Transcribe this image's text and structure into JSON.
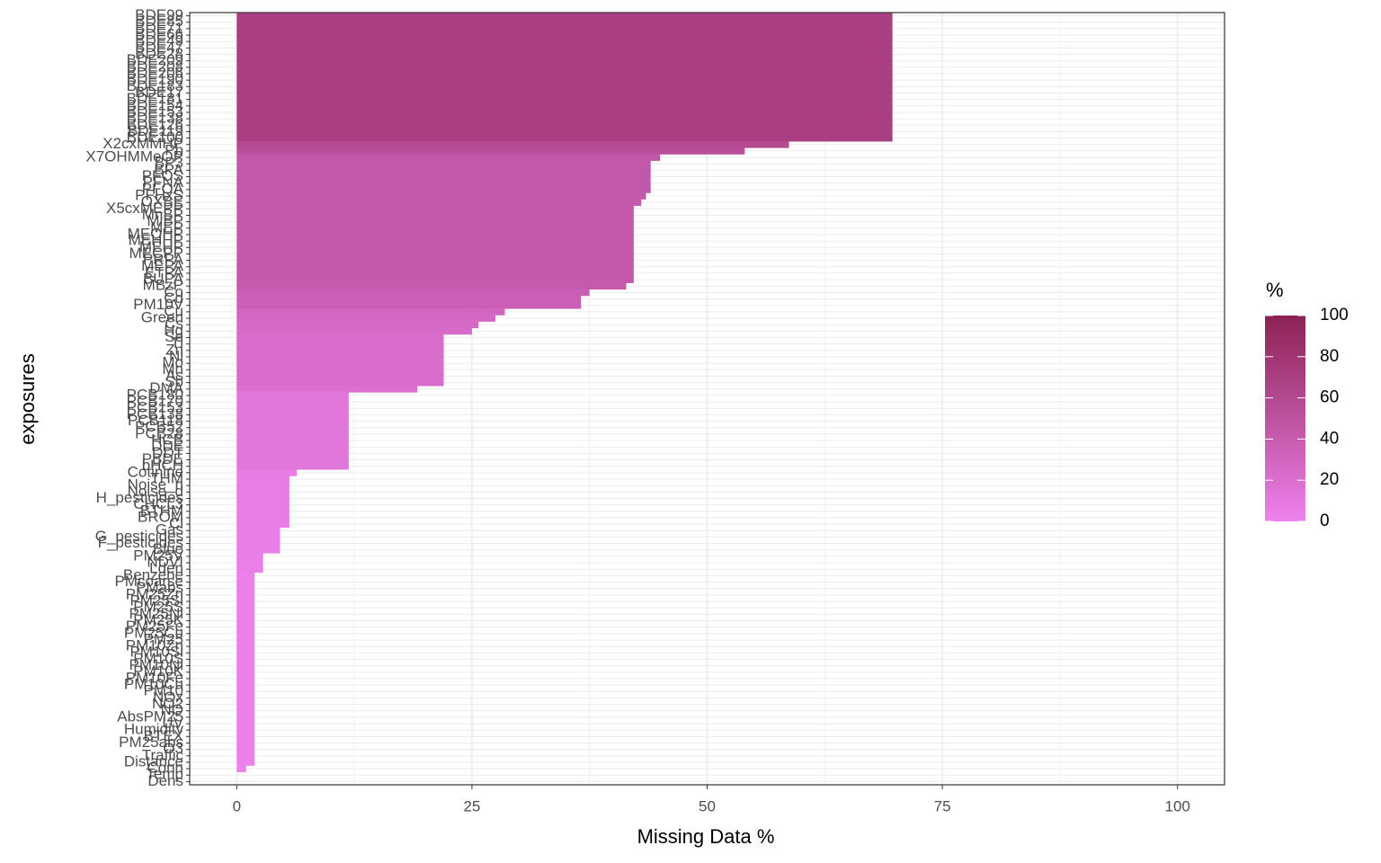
{
  "chart_data": {
    "type": "bar",
    "orientation": "horizontal",
    "x_label": "Missing Data %",
    "y_label": "exposures",
    "categories": [
      "BDE99",
      "BDE85",
      "BDE71",
      "BDE66",
      "BDE49",
      "BDE47",
      "BDE28",
      "BDE209",
      "BDE208",
      "BDE206",
      "BDE190",
      "BDE183",
      "BDE17",
      "BDE181",
      "BDE154",
      "BDE153",
      "BDE138",
      "BDE126",
      "BDE119",
      "BDE100",
      "X2cxMMHP",
      "Pb",
      "X7OHMMeOP",
      "BP3",
      "BPA",
      "PFOS",
      "PFNA",
      "PFOA",
      "PFHxS",
      "OXBE",
      "X5cxMEPP",
      "MnBP",
      "MiBP",
      "MEP",
      "MEOHP",
      "MEHHP",
      "MEHP",
      "MECPP",
      "PRPA",
      "MEPA",
      "ETPA",
      "BUPA",
      "MBzP",
      "Co",
      "Cd",
      "PM10V",
      "Cu",
      "Green",
      "Cs",
      "Hg",
      "Se",
      "Tl",
      "Zn",
      "Ni",
      "Mo",
      "Mn",
      "As",
      "Sb",
      "DMA",
      "PCB180",
      "PCB170",
      "PCB153",
      "PCB138",
      "PCB118",
      "PCB52",
      "PCB28",
      "HCB",
      "DDE",
      "DDT",
      "PBDE",
      "bHCH",
      "Cotinine",
      "THM",
      "Noise_n",
      "Noise_d",
      "H_pesticides",
      "CHCL3",
      "BTHM",
      "BROM",
      "Cl",
      "Gas",
      "G_pesticides",
      "F_pesticides",
      "Blue",
      "PM25V",
      "NDVI",
      "Lden",
      "Benzene",
      "PMcoarse",
      "PMabs",
      "PM25Zn",
      "PM25Si",
      "PM25S",
      "PM25Ni",
      "PM25K",
      "PM25Fe",
      "PM25Cu",
      "PM25",
      "PM10Zn",
      "PM10Si",
      "PM10S",
      "PM10Ni",
      "PM10K",
      "PM10Fe",
      "PM10Cu",
      "PM10",
      "NOx",
      "NO2",
      "NO",
      "AbsPM25",
      "UV",
      "Humidity",
      "BTEX",
      "PM25abs",
      "O3",
      "Traffic",
      "Distance",
      "Conn",
      "Temp",
      "Dens"
    ],
    "values": [
      69.7,
      69.7,
      69.7,
      69.7,
      69.7,
      69.7,
      69.7,
      69.7,
      69.7,
      69.7,
      69.7,
      69.7,
      69.7,
      69.7,
      69.7,
      69.7,
      69.7,
      69.7,
      69.7,
      69.7,
      58.7,
      54.0,
      45.0,
      44.0,
      44.0,
      44.0,
      44.0,
      44.0,
      43.5,
      43.0,
      42.2,
      42.2,
      42.2,
      42.2,
      42.2,
      42.2,
      42.2,
      42.2,
      42.2,
      42.2,
      42.2,
      42.2,
      41.4,
      37.5,
      36.6,
      36.6,
      28.5,
      27.5,
      25.7,
      25.0,
      22.0,
      22.0,
      22.0,
      22.0,
      22.0,
      22.0,
      22.0,
      22.0,
      19.2,
      11.9,
      11.9,
      11.9,
      11.9,
      11.9,
      11.9,
      11.9,
      11.9,
      11.9,
      11.9,
      11.9,
      11.9,
      6.4,
      5.6,
      5.6,
      5.6,
      5.6,
      5.6,
      5.6,
      5.6,
      5.6,
      4.6,
      4.6,
      4.6,
      4.6,
      2.8,
      2.8,
      2.8,
      1.9,
      1.9,
      1.9,
      1.9,
      1.9,
      1.9,
      1.9,
      1.9,
      1.9,
      1.9,
      1.9,
      1.9,
      1.9,
      1.9,
      1.9,
      1.9,
      1.9,
      1.9,
      1.9,
      1.9,
      1.9,
      1.9,
      1.9,
      1.9,
      1.9,
      1.9,
      1.9,
      1.9,
      1.9,
      1.9,
      1.0,
      0,
      0
    ],
    "xlim": [
      -5,
      105
    ],
    "xticks": [
      0,
      25,
      50,
      75,
      100
    ],
    "grid": true,
    "legend": {
      "title": "%",
      "ticks": [
        0,
        20,
        40,
        60,
        80,
        100
      ],
      "lim": [
        0,
        100
      ],
      "low_color": "#ee82ee",
      "high_color": "#8b2252"
    }
  }
}
